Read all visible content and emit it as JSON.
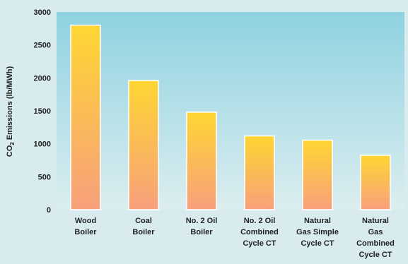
{
  "chart_data": {
    "type": "bar",
    "title": "",
    "xlabel": "",
    "ylabel": "CO2 Emissions (lb/MWh)",
    "ylabel_parts": {
      "pre": "CO",
      "sub": "2",
      "post": " Emissions (lb/MWh)"
    },
    "ylim": [
      0,
      3000
    ],
    "yticks": [
      0,
      500,
      1000,
      1500,
      2000,
      2500,
      3000
    ],
    "grid": false,
    "categories": [
      [
        "Wood",
        "Boiler"
      ],
      [
        "Coal",
        "Boiler"
      ],
      [
        "No. 2 Oil",
        "Boiler"
      ],
      [
        "No. 2 Oil",
        "Combined",
        "Cycle CT"
      ],
      [
        "Natural",
        "Gas Simple",
        "Cycle CT"
      ],
      [
        "Natural",
        "Gas",
        "Combined",
        "Cycle CT"
      ]
    ],
    "values": [
      2800,
      1960,
      1480,
      1120,
      1055,
      825
    ]
  },
  "colors": {
    "plot_bg_top": "#8fd2e0",
    "plot_bg_bottom": "#dceef0",
    "bar_top": "#ffd633",
    "bar_bottom": "#f7a07c",
    "text": "#222222"
  }
}
